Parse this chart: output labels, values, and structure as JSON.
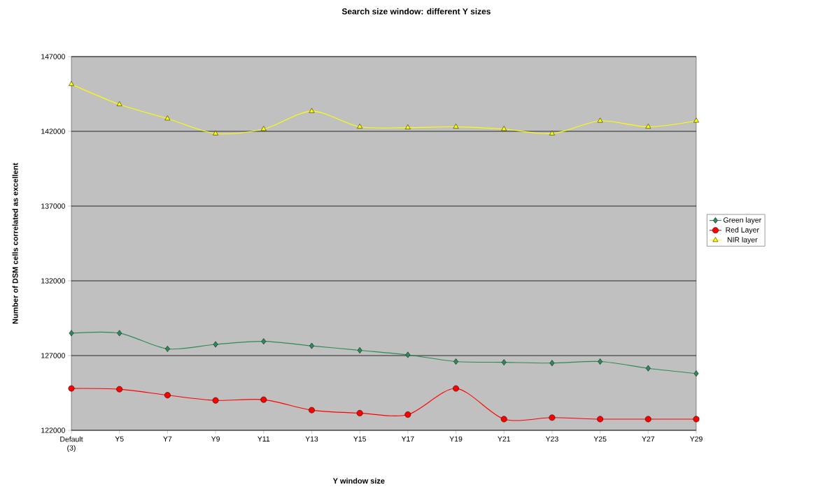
{
  "chart_data": {
    "type": "line",
    "title": "Search size window: different Y sizes",
    "xlabel": "Y window size",
    "ylabel": "Number of DSM cells correlated as excellent",
    "categories": [
      "Default (3)",
      "Y5",
      "Y7",
      "Y9",
      "Y11",
      "Y13",
      "Y15",
      "Y17",
      "Y19",
      "Y21",
      "Y23",
      "Y25",
      "Y27",
      "Y29"
    ],
    "series": [
      {
        "name": "Green layer",
        "color": "#2e8b57",
        "marker": "diamond",
        "values": [
          128500,
          128500,
          127450,
          127750,
          127950,
          127650,
          127350,
          127050,
          126600,
          126550,
          126500,
          126600,
          126150,
          125800
        ]
      },
      {
        "name": "Red Layer",
        "color": "#ff0000",
        "marker": "circle",
        "values": [
          124800,
          124750,
          124350,
          124000,
          124050,
          123350,
          123150,
          123050,
          124800,
          122750,
          122850,
          122750,
          122750,
          122750
        ]
      },
      {
        "name": "NIR layer",
        "color": "#ffff00",
        "marker": "triangle",
        "values": [
          145150,
          143800,
          142850,
          141850,
          142150,
          143350,
          142300,
          142250,
          142300,
          142150,
          141850,
          142700,
          142300,
          142700
        ]
      }
    ],
    "ylim": [
      122000,
      147000
    ],
    "yticks": [
      122000,
      127000,
      132000,
      137000,
      142000,
      147000
    ],
    "grid": "y",
    "legend": "right"
  }
}
